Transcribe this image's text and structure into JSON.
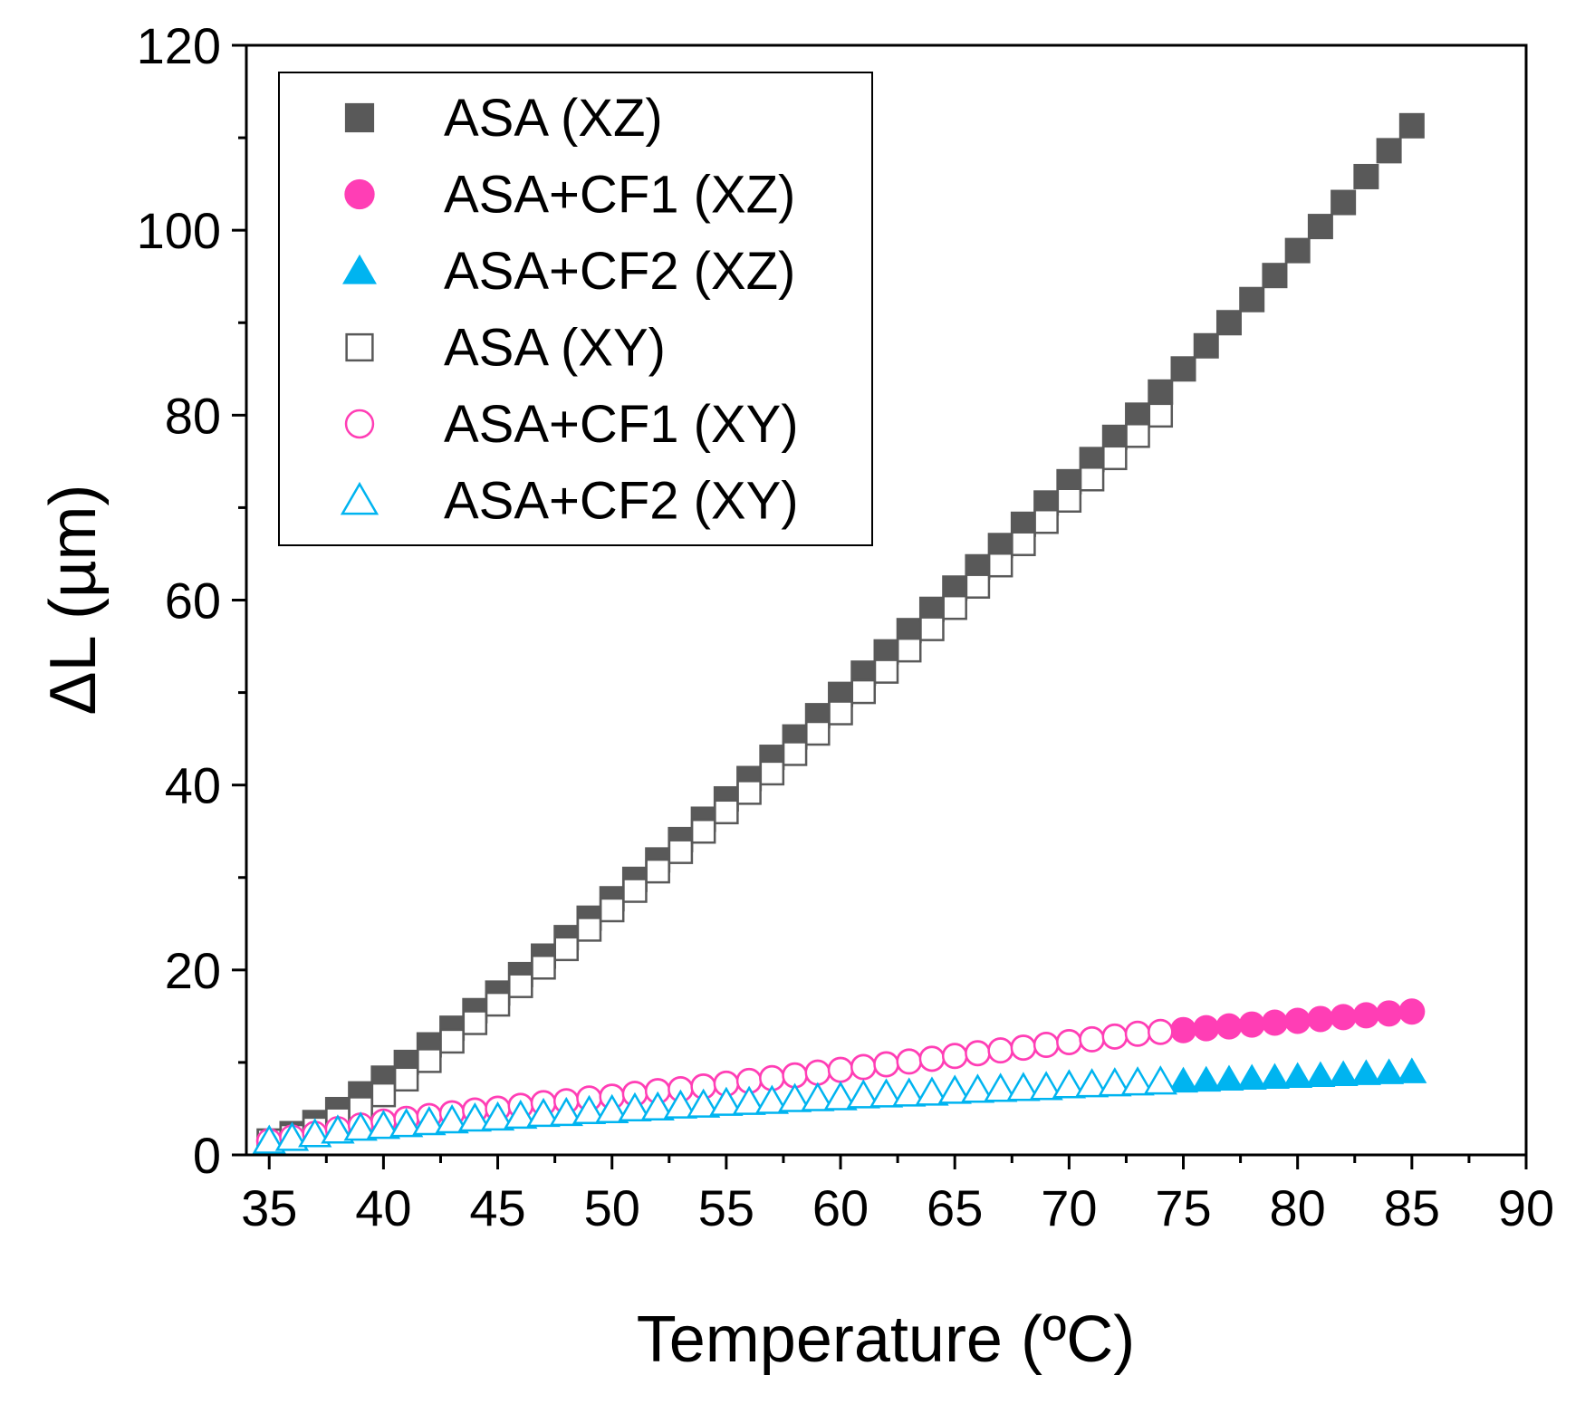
{
  "chart_data": {
    "type": "scatter",
    "xlabel": "Temperature (ºC)",
    "ylabel": "ΔL (µm)",
    "xlim": [
      34,
      90
    ],
    "ylim": [
      0,
      120
    ],
    "xticks": [
      35,
      40,
      45,
      50,
      55,
      60,
      65,
      70,
      75,
      80,
      85,
      90
    ],
    "yticks": [
      0,
      20,
      40,
      60,
      80,
      100,
      120
    ],
    "legend_position": "top-left",
    "grid": false,
    "series": [
      {
        "name": "ASA (XZ)",
        "marker": "square",
        "filled": true,
        "color": "#595959",
        "x": [
          35,
          36,
          37,
          38,
          39,
          40,
          41,
          42,
          43,
          44,
          45,
          46,
          47,
          48,
          49,
          50,
          51,
          52,
          53,
          54,
          55,
          56,
          57,
          58,
          59,
          60,
          61,
          62,
          63,
          64,
          65,
          66,
          67,
          68,
          69,
          70,
          71,
          72,
          73,
          74,
          75,
          76,
          77,
          78,
          79,
          80,
          81,
          82,
          83,
          84,
          85
        ],
        "y": [
          1.5,
          2.3,
          3.5,
          4.9,
          6.6,
          8.3,
          10.0,
          11.9,
          13.7,
          15.6,
          17.5,
          19.5,
          21.5,
          23.5,
          25.6,
          27.7,
          29.8,
          31.9,
          34.1,
          36.3,
          38.5,
          40.7,
          43.0,
          45.2,
          47.5,
          49.8,
          52.1,
          54.4,
          56.7,
          59.0,
          61.3,
          63.6,
          65.9,
          68.2,
          70.5,
          72.8,
          75.2,
          77.6,
          80.0,
          82.5,
          85.0,
          87.5,
          90.0,
          92.5,
          95.1,
          97.8,
          100.4,
          103.0,
          105.8,
          108.6,
          111.3
        ]
      },
      {
        "name": "ASA+CF1 (XZ)",
        "marker": "circle",
        "filled": true,
        "color": "#FF3EB5",
        "x": [
          35,
          36,
          37,
          38,
          39,
          40,
          41,
          42,
          43,
          44,
          45,
          46,
          47,
          48,
          49,
          50,
          51,
          52,
          53,
          54,
          55,
          56,
          57,
          58,
          59,
          60,
          61,
          62,
          63,
          64,
          65,
          66,
          67,
          68,
          69,
          70,
          71,
          72,
          73,
          74,
          75,
          76,
          77,
          78,
          79,
          80,
          81,
          82,
          83,
          84,
          85
        ],
        "y": [
          1.5,
          1.9,
          2.3,
          2.8,
          3.2,
          3.6,
          3.9,
          4.2,
          4.5,
          4.8,
          5.0,
          5.3,
          5.6,
          5.8,
          6.1,
          6.3,
          6.6,
          6.9,
          7.1,
          7.4,
          7.7,
          8.0,
          8.3,
          8.6,
          8.9,
          9.2,
          9.5,
          9.8,
          10.1,
          10.4,
          10.7,
          11.0,
          11.3,
          11.6,
          11.9,
          12.2,
          12.5,
          12.8,
          13.1,
          13.3,
          13.5,
          13.7,
          13.9,
          14.1,
          14.3,
          14.5,
          14.7,
          14.9,
          15.1,
          15.3,
          15.5
        ]
      },
      {
        "name": "ASA+CF2 (XZ)",
        "marker": "triangle",
        "filled": true,
        "color": "#00B4F0",
        "x": [
          35,
          36,
          37,
          38,
          39,
          40,
          41,
          42,
          43,
          44,
          45,
          46,
          47,
          48,
          49,
          50,
          51,
          52,
          53,
          54,
          55,
          56,
          57,
          58,
          59,
          60,
          61,
          62,
          63,
          64,
          65,
          66,
          67,
          68,
          69,
          70,
          71,
          72,
          73,
          74,
          75,
          76,
          77,
          78,
          79,
          80,
          81,
          82,
          83,
          84,
          85
        ],
        "y": [
          1.5,
          1.8,
          2.2,
          2.6,
          2.9,
          3.1,
          3.3,
          3.5,
          3.7,
          3.9,
          4.0,
          4.2,
          4.4,
          4.5,
          4.7,
          4.8,
          5.0,
          5.1,
          5.3,
          5.4,
          5.6,
          5.7,
          5.8,
          6.0,
          6.1,
          6.2,
          6.4,
          6.5,
          6.6,
          6.7,
          6.9,
          7.0,
          7.1,
          7.2,
          7.3,
          7.5,
          7.6,
          7.7,
          7.8,
          7.9,
          8.0,
          8.1,
          8.2,
          8.3,
          8.4,
          8.5,
          8.6,
          8.7,
          8.8,
          8.9,
          9.0
        ]
      },
      {
        "name": "ASA (XY)",
        "marker": "square",
        "filled": false,
        "color": "#595959",
        "x": [
          35,
          36,
          37,
          38,
          39,
          40,
          41,
          42,
          43,
          44,
          45,
          46,
          47,
          48,
          49,
          50,
          51,
          52,
          53,
          54,
          55,
          56,
          57,
          58,
          59,
          60,
          61,
          62,
          63,
          64,
          65,
          66,
          67,
          68,
          69,
          70,
          71,
          72,
          73,
          74
        ],
        "y": [
          1.5,
          2.0,
          2.8,
          3.8,
          5.0,
          6.5,
          8.2,
          10.2,
          12.3,
          14.3,
          16.3,
          18.3,
          20.3,
          22.3,
          24.4,
          26.5,
          28.6,
          30.7,
          32.8,
          35.0,
          37.1,
          39.2,
          41.3,
          43.4,
          45.6,
          47.8,
          50.1,
          52.3,
          54.6,
          56.9,
          59.2,
          61.5,
          63.8,
          66.1,
          68.5,
          70.8,
          73.1,
          75.4,
          77.8,
          80.0
        ]
      },
      {
        "name": "ASA+CF1 (XY)",
        "marker": "circle",
        "filled": false,
        "color": "#FF3EB5",
        "x": [
          35,
          36,
          37,
          38,
          39,
          40,
          41,
          42,
          43,
          44,
          45,
          46,
          47,
          48,
          49,
          50,
          51,
          52,
          53,
          54,
          55,
          56,
          57,
          58,
          59,
          60,
          61,
          62,
          63,
          64,
          65,
          66,
          67,
          68,
          69,
          70,
          71,
          72,
          73,
          74
        ],
        "y": [
          1.5,
          1.9,
          2.3,
          2.8,
          3.2,
          3.6,
          3.9,
          4.2,
          4.5,
          4.8,
          5.0,
          5.3,
          5.6,
          5.8,
          6.1,
          6.3,
          6.6,
          6.9,
          7.1,
          7.4,
          7.7,
          8.0,
          8.3,
          8.6,
          8.9,
          9.2,
          9.5,
          9.8,
          10.1,
          10.4,
          10.7,
          11.0,
          11.3,
          11.6,
          11.9,
          12.2,
          12.5,
          12.8,
          13.1,
          13.3
        ]
      },
      {
        "name": "ASA+CF2 (XY)",
        "marker": "triangle",
        "filled": false,
        "color": "#00B4F0",
        "x": [
          35,
          36,
          37,
          38,
          39,
          40,
          41,
          42,
          43,
          44,
          45,
          46,
          47,
          48,
          49,
          50,
          51,
          52,
          53,
          54,
          55,
          56,
          57,
          58,
          59,
          60,
          61,
          62,
          63,
          64,
          65,
          66,
          67,
          68,
          69,
          70,
          71,
          72,
          73,
          74
        ],
        "y": [
          1.5,
          1.8,
          2.2,
          2.6,
          2.9,
          3.1,
          3.3,
          3.5,
          3.7,
          3.9,
          4.0,
          4.2,
          4.4,
          4.5,
          4.7,
          4.8,
          5.0,
          5.1,
          5.3,
          5.4,
          5.6,
          5.7,
          5.8,
          6.0,
          6.1,
          6.2,
          6.4,
          6.5,
          6.6,
          6.7,
          6.9,
          7.0,
          7.1,
          7.2,
          7.3,
          7.5,
          7.6,
          7.7,
          7.8,
          7.9
        ]
      }
    ]
  }
}
